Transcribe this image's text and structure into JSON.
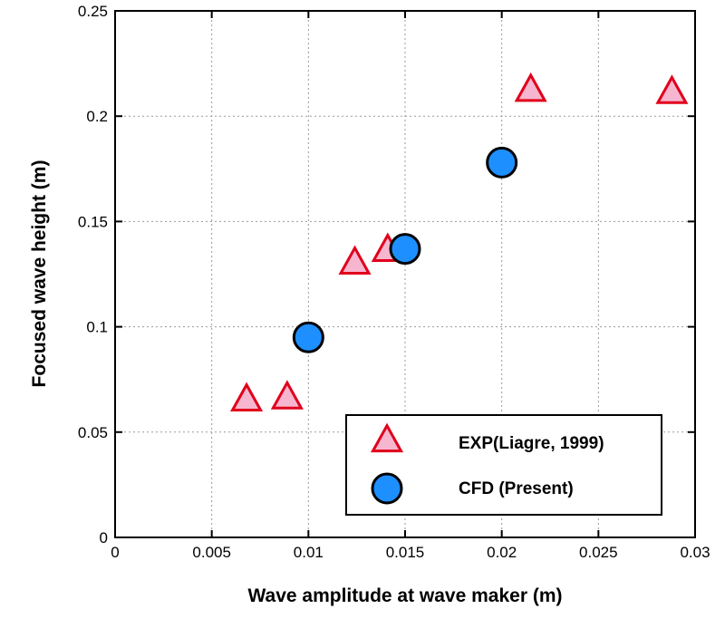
{
  "chart_data": {
    "type": "scatter",
    "title": "",
    "xlabel": "Wave amplitude at wave maker (m)",
    "ylabel": "Focused wave height (m)",
    "xlim": [
      0,
      0.03
    ],
    "ylim": [
      0,
      0.25
    ],
    "grid": true,
    "legend_position": "bottom-right",
    "x_ticks": [
      {
        "value": 0,
        "label": "0"
      },
      {
        "value": 0.005,
        "label": "0.005"
      },
      {
        "value": 0.01,
        "label": "0.01"
      },
      {
        "value": 0.015,
        "label": "0.015"
      },
      {
        "value": 0.02,
        "label": "0.02"
      },
      {
        "value": 0.025,
        "label": "0.025"
      },
      {
        "value": 0.03,
        "label": "0.03"
      }
    ],
    "y_ticks": [
      {
        "value": 0,
        "label": "0"
      },
      {
        "value": 0.05,
        "label": "0.05"
      },
      {
        "value": 0.1,
        "label": "0.1"
      },
      {
        "value": 0.15,
        "label": "0.15"
      },
      {
        "value": 0.2,
        "label": "0.2"
      },
      {
        "value": 0.25,
        "label": "0.25"
      }
    ],
    "series": [
      {
        "name": "EXP(Liagre, 1999)",
        "marker": "triangle",
        "color": "#f7b6cf",
        "edge_color": "#e0001b",
        "points": [
          {
            "x": 0.0068,
            "y": 0.065
          },
          {
            "x": 0.0089,
            "y": 0.066
          },
          {
            "x": 0.0124,
            "y": 0.13
          },
          {
            "x": 0.0141,
            "y": 0.136
          },
          {
            "x": 0.0215,
            "y": 0.212
          },
          {
            "x": 0.0288,
            "y": 0.211
          }
        ]
      },
      {
        "name": "CFD (Present)",
        "marker": "circle",
        "color": "#1e8fff",
        "edge_color": "#000000",
        "points": [
          {
            "x": 0.01,
            "y": 0.095
          },
          {
            "x": 0.015,
            "y": 0.137
          },
          {
            "x": 0.02,
            "y": 0.178
          }
        ]
      }
    ]
  }
}
